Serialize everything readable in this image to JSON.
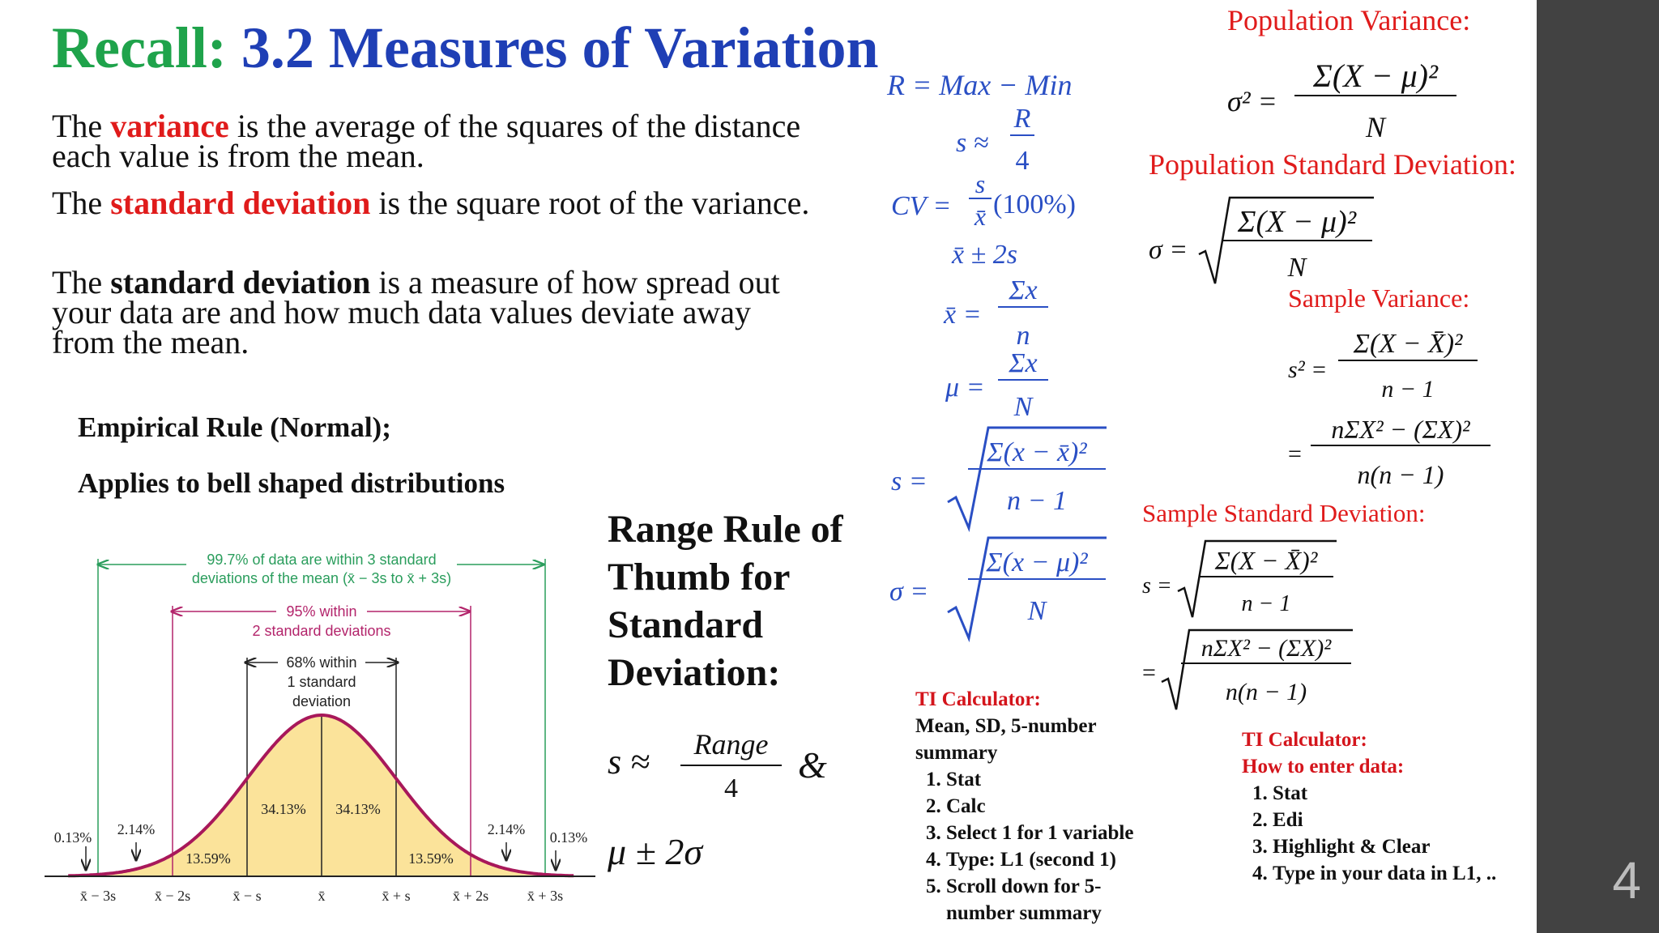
{
  "slide": {
    "title_prefix": "Recall:",
    "title_main": "3.2 Measures of Variation",
    "page_number": "4"
  },
  "definitions": {
    "p1_pre": "The ",
    "p1_term": "variance",
    "p1_post": " is the average of the squares of the distance each value is from the mean.",
    "p2_pre": "The ",
    "p2_term": "standard deviation",
    "p2_post": " is the square root of the variance.",
    "p3_pre": "The ",
    "p3_term": "standard deviation",
    "p3_post": " is a measure of how spread out your data are and how much data values deviate away from the mean."
  },
  "empirical": {
    "line1": "Empirical Rule (Normal);",
    "line2": "Applies to bell shaped distributions"
  },
  "bell_figure": {
    "label_997_line1": "99.7% of data are within 3 standard",
    "label_997_line2": "deviations of the mean (x̄ − 3s to x̄ + 3s)",
    "label_95_line1": "95% within",
    "label_95_line2": "2 standard deviations",
    "label_68_line1": "68% within",
    "label_68_line2": "1 standard",
    "label_68_line3": "deviation",
    "pct_3413_left": "34.13%",
    "pct_3413_right": "34.13%",
    "pct_1359_left": "13.59%",
    "pct_1359_right": "13.59%",
    "pct_214_left": "2.14%",
    "pct_214_right": "2.14%",
    "pct_013_left": "0.13%",
    "pct_013_right": "0.13%",
    "ticks": [
      "x̄ − 3s",
      "x̄ − 2s",
      "x̄ − s",
      "x̄",
      "x̄ + s",
      "x̄ + 2s",
      "x̄ + 3s"
    ],
    "colors": {
      "curve": "#a8185a",
      "fill": "#fbe39a",
      "green": "#2a9d5c",
      "magenta": "#b3246b"
    }
  },
  "range_rule": {
    "heading": "Range Rule of Thumb for Standard Deviation:",
    "s_approx": "s ≈",
    "numerator": "Range",
    "denominator": "4",
    "amp": "&",
    "mu_2sigma": "μ ± 2σ"
  },
  "blue_formulas": {
    "range": "R = Max − Min",
    "s_approx": "s ≈",
    "s_num": "R",
    "s_den": "4",
    "cv_left": "CV =",
    "cv_num": "s",
    "cv_den": "x̄",
    "cv_right": "(100%)",
    "xbar_2s": "x̄ ± 2s",
    "xbar_eq": "x̄ =",
    "sum_x": "Σx",
    "n_small": "n",
    "mu_eq": "μ =",
    "N_big": "N",
    "s_eq": "s =",
    "s_num_expr": "Σ(x − x̄)²",
    "s_den_expr": "n − 1",
    "sigma_eq": "σ =",
    "sigma_num_expr": "Σ(x − μ)²",
    "sigma_den_expr": "N"
  },
  "right_panel": {
    "pop_var_label": "Population Variance:",
    "pop_var_lhs": "σ² =",
    "pop_var_num": "Σ(X − μ)²",
    "pop_var_den": "N",
    "pop_sd_label": "Population Standard Deviation:",
    "pop_sd_lhs": "σ =",
    "pop_sd_num": "Σ(X − μ)²",
    "pop_sd_den": "N",
    "samp_var_label": "Sample Variance:",
    "samp_var_lhs": "s² =",
    "samp_var_num": "Σ(X − X̄)²",
    "samp_var_den": "n − 1",
    "samp_var_eq": "=",
    "samp_var_num2": "nΣX² − (ΣX)²",
    "samp_var_den2": "n(n − 1)",
    "samp_sd_label": "Sample Standard Deviation:",
    "samp_sd_lhs": "s =",
    "samp_sd_num": "Σ(X − X̄)²",
    "samp_sd_den": "n − 1",
    "samp_sd_eq": "=",
    "samp_sd_num2": "nΣX² − (ΣX)²",
    "samp_sd_den2": "n(n − 1)"
  },
  "ti_left": {
    "heading": "TI Calculator:",
    "subheading": "Mean, SD, 5-number summary",
    "steps": [
      "Stat",
      "Calc",
      "Select 1 for 1 variable",
      "Type: L1 (second 1)",
      "Scroll down for 5-number summary"
    ]
  },
  "ti_right": {
    "heading": "TI Calculator:",
    "subheading": "How to enter data:",
    "steps": [
      "Stat",
      "Edi",
      "Highlight & Clear",
      "Type in your data in L1, .."
    ]
  }
}
